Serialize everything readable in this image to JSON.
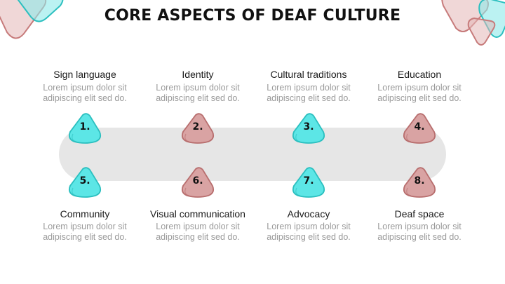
{
  "title": "CORE ASPECTS OF DEAF CULTURE",
  "colors": {
    "teal": "#5ce6e6",
    "pink": "#d9a3a3",
    "teal_stroke": "#2bbfbf",
    "pink_stroke": "#b86e6e",
    "track": "#e6e6e6"
  },
  "items": [
    {
      "number": "1.",
      "title": "Sign language",
      "desc1": "Lorem ipsum dolor sit",
      "desc2": "adipiscing elit sed do.",
      "color": "teal"
    },
    {
      "number": "2.",
      "title": "Identity",
      "desc1": "Lorem ipsum dolor sit",
      "desc2": "adipiscing elit sed do.",
      "color": "pink"
    },
    {
      "number": "3.",
      "title": "Cultural traditions",
      "desc1": "Lorem ipsum dolor sit",
      "desc2": "adipiscing elit sed do.",
      "color": "teal"
    },
    {
      "number": "4.",
      "title": "Education",
      "desc1": "Lorem ipsum dolor sit",
      "desc2": "adipiscing elit sed do.",
      "color": "pink"
    },
    {
      "number": "5.",
      "title": "Community",
      "desc1": "Lorem ipsum dolor sit",
      "desc2": "adipiscing elit sed do.",
      "color": "teal"
    },
    {
      "number": "6.",
      "title": "Visual communication",
      "desc1": "Lorem ipsum dolor sit",
      "desc2": "adipiscing elit sed do.",
      "color": "pink"
    },
    {
      "number": "7.",
      "title": "Advocacy",
      "desc1": "Lorem ipsum dolor sit",
      "desc2": "adipiscing elit sed do.",
      "color": "teal"
    },
    {
      "number": "8.",
      "title": "Deaf space",
      "desc1": "Lorem ipsum dolor sit",
      "desc2": "adipiscing elit sed do.",
      "color": "pink"
    }
  ]
}
